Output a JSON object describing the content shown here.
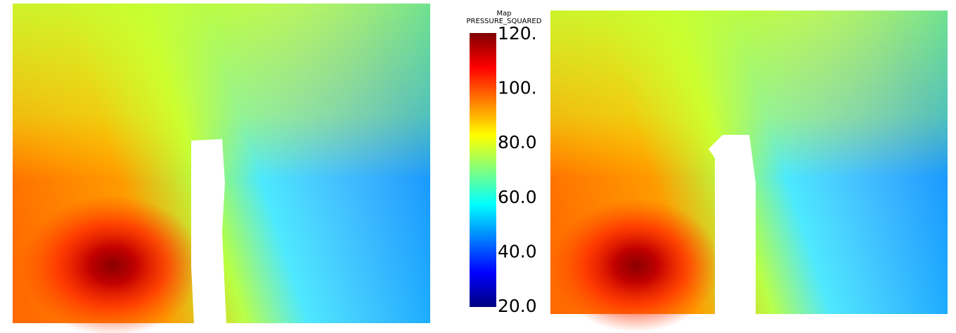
{
  "chart_data": {
    "type": "colorbar",
    "title": "Map",
    "subtitle": "PRESSURE_SQUARED",
    "colormap": "jet",
    "ylim": [
      20,
      120
    ],
    "yticks": [
      {
        "value": 20,
        "label": "20.0"
      },
      {
        "value": 40,
        "label": "40.0"
      },
      {
        "value": 60,
        "label": "60.0"
      },
      {
        "value": 80,
        "label": "80.0"
      },
      {
        "value": 100,
        "label": "100."
      },
      {
        "value": 120,
        "label": "120."
      }
    ]
  }
}
